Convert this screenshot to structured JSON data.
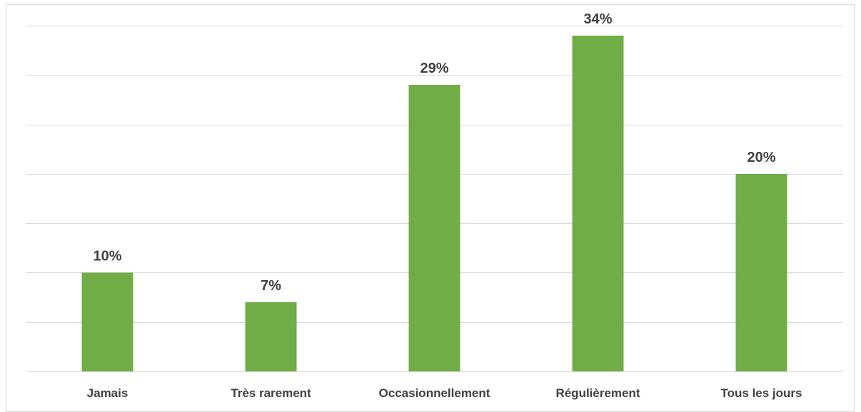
{
  "chart_data": {
    "type": "bar",
    "title": "",
    "xlabel": "",
    "ylabel": "",
    "categories": [
      "Jamais",
      "Très rarement",
      "Occasionnellement",
      "Régulièrement",
      "Tous les jours"
    ],
    "values": [
      10,
      7,
      29,
      34,
      20
    ],
    "data_labels": [
      "10%",
      "7%",
      "29%",
      "34%",
      "20%"
    ],
    "unit": "%",
    "ylim": [
      0,
      35
    ],
    "y_gridline_step": 5,
    "grid": true,
    "legend": "none",
    "bar_color": "#70AD47",
    "label_color": "#404040",
    "gridline_color": "#D9D9D9"
  }
}
